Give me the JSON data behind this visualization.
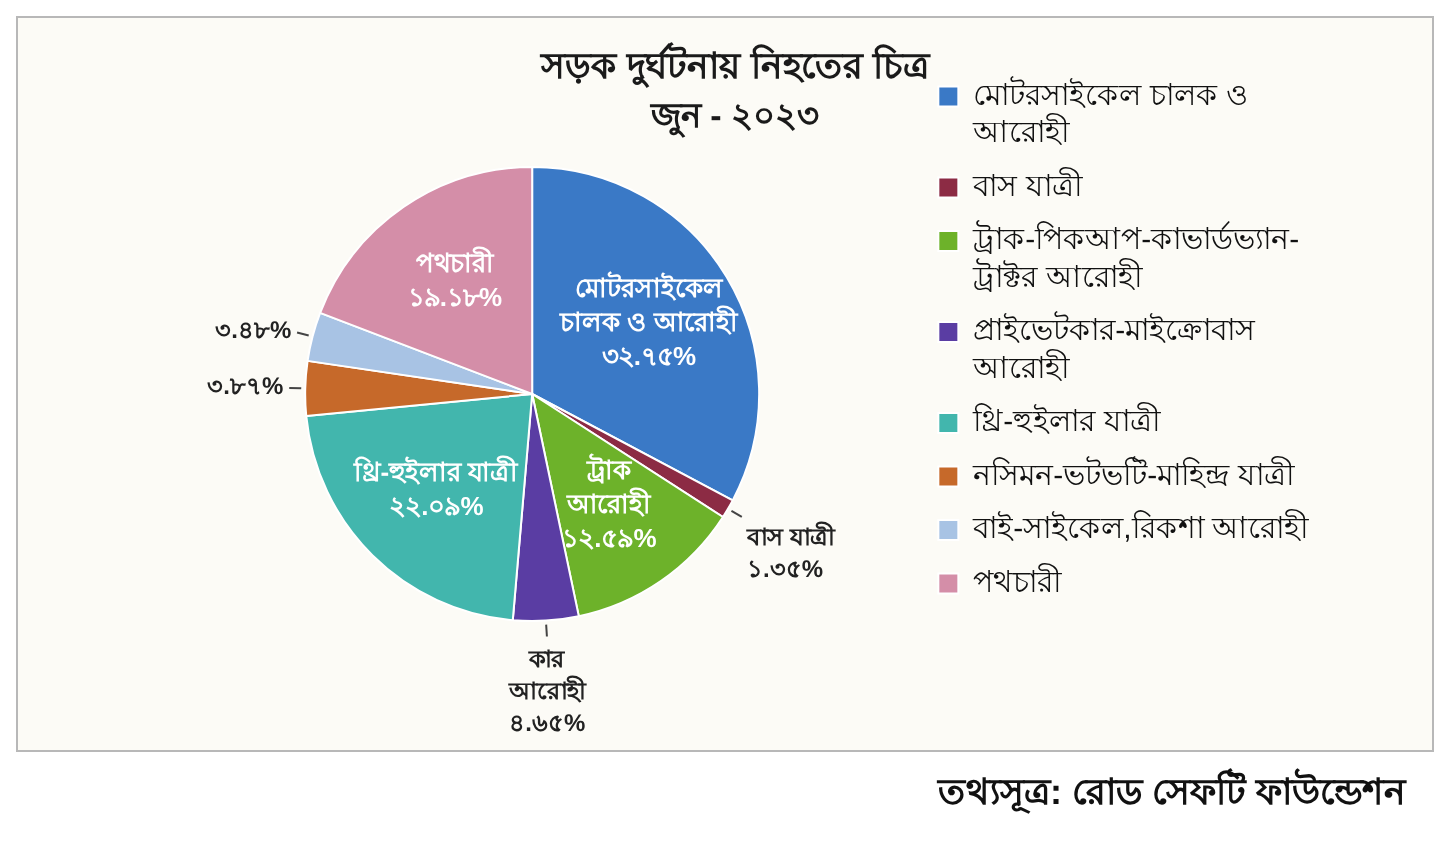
{
  "chart_data": {
    "type": "pie",
    "title": "সড়ক দুর্ঘটনায় নিহতের চিত্র",
    "subtitle": "জুন - ২০২৩",
    "categories": [
      "মোটরসাইকেল চালক ও আরোহী",
      "বাস যাত্রী",
      "ট্রাক-পিকআপ-কাভার্ডভ্যান-ট্রাক্টর আরোহী",
      "প্রাইভেটকার-মাইক্রোবাস আরোহী",
      "থ্রি-হুইলার যাত্রী",
      "নসিমন-ভটভটি-মাহিন্দ্র যাত্রী",
      "বাই-সাইকেল,রিকশা আরোহী",
      "পথচারী"
    ],
    "values": [
      32.75,
      1.35,
      12.59,
      4.65,
      22.09,
      3.87,
      3.48,
      19.18
    ],
    "colors": [
      "#3a79c6",
      "#8c2b44",
      "#6db22a",
      "#5a3da3",
      "#42b6ad",
      "#c6692a",
      "#a8c3e4",
      "#d48ea8"
    ],
    "value_labels": [
      "মোটরসাইকেল\nচালক ও আরোহী\n৩২.৭৫%",
      "বাস যাত্রী\n১.৩৫%",
      "ট্রাক\nআরোহী\n১২.৫৯%",
      "কার\nআরোহী\n৪.৬৫%",
      "থ্রি-হুইলার যাত্রী\n২২.০৯%",
      "৩.৮৭%",
      "৩.৪৮%",
      "পথচারী\n১৯.১৮%"
    ],
    "legend": "right",
    "annotations": [
      "তথ্যসূত্র: রোড সেফটি ফাউন্ডেশন"
    ]
  }
}
